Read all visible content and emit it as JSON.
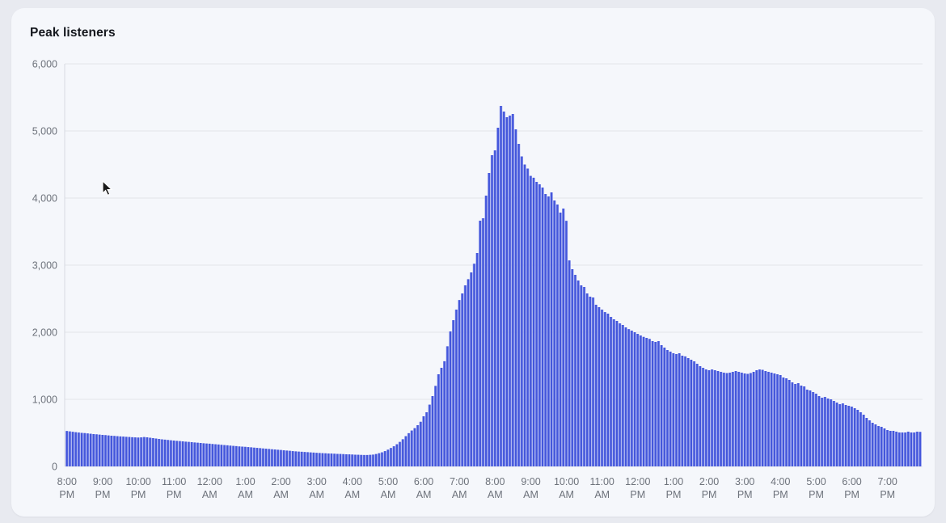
{
  "card": {
    "title": "Peak listeners"
  },
  "chart_data": {
    "type": "bar",
    "title": "Peak listeners",
    "interval_minutes": 5,
    "x_range": "8:00 PM to 7:55 PM (24 hours)",
    "x_tick_labels": [
      "8:00 PM",
      "9:00 PM",
      "10:00 PM",
      "11:00 PM",
      "12:00 AM",
      "1:00 AM",
      "2:00 AM",
      "3:00 AM",
      "4:00 AM",
      "5:00 AM",
      "6:00 AM",
      "7:00 AM",
      "8:00 AM",
      "9:00 AM",
      "10:00 AM",
      "11:00 AM",
      "12:00 PM",
      "1:00 PM",
      "2:00 PM",
      "3:00 PM",
      "4:00 PM",
      "5:00 PM",
      "6:00 PM",
      "7:00 PM"
    ],
    "y_tick_labels": [
      "0",
      "1,000",
      "2,000",
      "3,000",
      "4,000",
      "5,000",
      "6,000"
    ],
    "ylim": [
      0,
      6000
    ],
    "grid": true,
    "legend": false,
    "peak_value": 5374,
    "peak_time": "8:10 AM",
    "colors": {
      "bar": "#4356db",
      "bar_edge": "#96a0ed",
      "grid": "#e2e4ea",
      "axis": "#d7dae1",
      "tick_text": "#6d727b",
      "title_text": "#14171d",
      "card_bg": "#f5f7fb",
      "page_bg": "#e8eaf0"
    },
    "values": [
      528,
      522,
      516,
      510,
      505,
      500,
      496,
      491,
      487,
      482,
      478,
      474,
      470,
      466,
      462,
      458,
      454,
      450,
      447,
      444,
      441,
      438,
      435,
      432,
      430,
      433,
      437,
      434,
      428,
      422,
      416,
      410,
      404,
      399,
      394,
      389,
      385,
      381,
      377,
      373,
      369,
      365,
      361,
      357,
      353,
      349,
      345,
      341,
      338,
      334,
      330,
      326,
      322,
      318,
      314,
      310,
      306,
      302,
      298,
      295,
      292,
      288,
      284,
      280,
      276,
      272,
      268,
      264,
      260,
      256,
      252,
      248,
      244,
      240,
      236,
      232,
      228,
      224,
      221,
      218,
      215,
      212,
      209,
      206,
      203,
      200,
      197,
      195,
      193,
      191,
      189,
      187,
      185,
      183,
      181,
      179,
      177,
      175,
      173,
      171,
      170,
      170,
      172,
      176,
      184,
      196,
      210,
      228,
      250,
      275,
      300,
      330,
      365,
      405,
      450,
      495,
      535,
      570,
      615,
      665,
      747,
      807,
      920,
      1048,
      1200,
      1373,
      1470,
      1567,
      1790,
      2012,
      2180,
      2337,
      2480,
      2578,
      2699,
      2790,
      2892,
      3020,
      3181,
      3663,
      3699,
      4036,
      4373,
      4639,
      4711,
      5048,
      5374,
      5289,
      5205,
      5229,
      5253,
      5024,
      4807,
      4620,
      4500,
      4440,
      4330,
      4302,
      4241,
      4205,
      4157,
      4060,
      4024,
      4084,
      3964,
      3904,
      3783,
      3843,
      3660,
      3070,
      2940,
      2855,
      2771,
      2699,
      2675,
      2578,
      2530,
      2518,
      2410,
      2374,
      2337,
      2300,
      2277,
      2229,
      2193,
      2169,
      2133,
      2108,
      2072,
      2046,
      2024,
      2000,
      1976,
      1952,
      1930,
      1916,
      1900,
      1867,
      1855,
      1867,
      1807,
      1771,
      1735,
      1711,
      1687,
      1675,
      1687,
      1651,
      1640,
      1614,
      1590,
      1566,
      1530,
      1494,
      1470,
      1446,
      1434,
      1446,
      1434,
      1422,
      1410,
      1398,
      1392,
      1398,
      1410,
      1422,
      1410,
      1398,
      1386,
      1380,
      1392,
      1410,
      1434,
      1446,
      1440,
      1422,
      1410,
      1398,
      1386,
      1374,
      1362,
      1325,
      1313,
      1289,
      1253,
      1229,
      1241,
      1205,
      1193,
      1145,
      1133,
      1108,
      1084,
      1048,
      1024,
      1036,
      1012,
      1000,
      976,
      952,
      928,
      940,
      916,
      904,
      892,
      867,
      843,
      807,
      771,
      723,
      687,
      651,
      627,
      602,
      590,
      566,
      542,
      530,
      530,
      518,
      506,
      506,
      506,
      518,
      506,
      506,
      518,
      514
    ]
  }
}
